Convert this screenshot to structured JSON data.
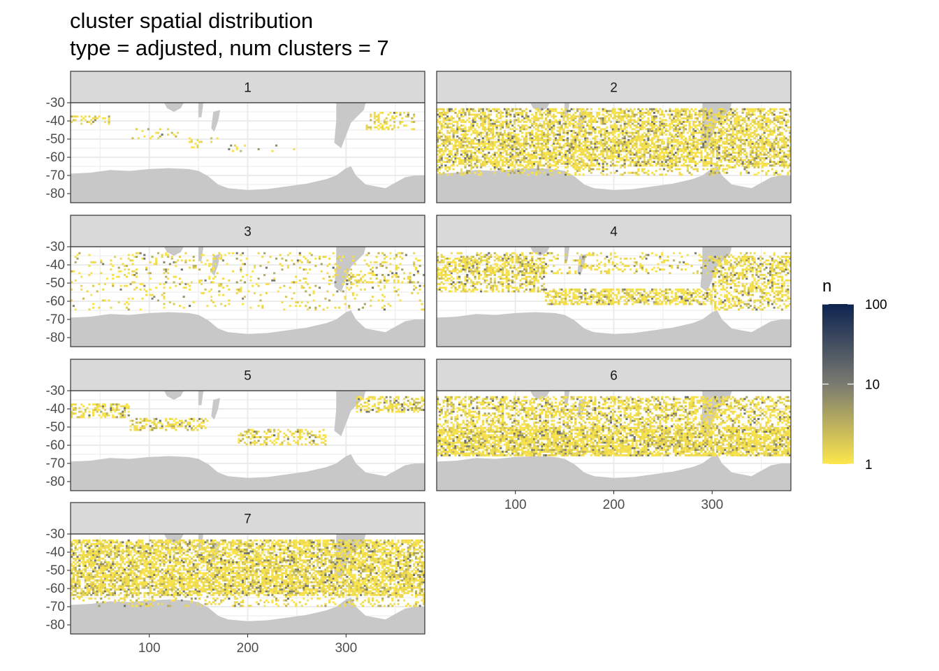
{
  "title_line1": "cluster spatial distribution",
  "title_line2": "type = adjusted, num clusters = 7",
  "chart_data": {
    "type": "heatmap",
    "title": "cluster spatial distribution",
    "subtitle": "type = adjusted, num clusters = 7",
    "facet_labels": [
      "1",
      "2",
      "3",
      "4",
      "5",
      "6",
      "7"
    ],
    "xlim": [
      20,
      380
    ],
    "ylim": [
      -85,
      -30
    ],
    "x_ticks": [
      100,
      200,
      300
    ],
    "y_ticks": [
      -30,
      -40,
      -50,
      -60,
      -70,
      -80
    ],
    "y_tick_labels": [
      "-30",
      "-40",
      "-50",
      "-60",
      "-70",
      "-80"
    ],
    "x_tick_labels": [
      "100",
      "200",
      "300"
    ],
    "fill": {
      "name": "n",
      "scale": "log10",
      "range": [
        1,
        100
      ],
      "breaks": [
        1,
        10,
        100
      ],
      "break_labels": [
        "1",
        "10",
        "100"
      ],
      "low_color": "#fde74c",
      "mid_color": "#7a7a70",
      "high_color": "#0d2451"
    },
    "land_color": "#c8c8c8",
    "panel_border": "#333333",
    "strip_fill": "#d9d9d9",
    "grid": true,
    "legend_position": "right",
    "facets": [
      {
        "label": "1",
        "bands": [
          {
            "x": [
              20,
              60
            ],
            "y": [
              -42,
              -37
            ],
            "density": 0.35
          },
          {
            "x": [
              80,
              130
            ],
            "y": [
              -50,
              -44
            ],
            "density": 0.15
          },
          {
            "x": [
              140,
              170
            ],
            "y": [
              -55,
              -49
            ],
            "density": 0.12
          },
          {
            "x": [
              180,
              250
            ],
            "y": [
              -57,
              -53
            ],
            "density": 0.08
          },
          {
            "x": [
              320,
              370
            ],
            "y": [
              -45,
              -35
            ],
            "density": 0.3
          }
        ]
      },
      {
        "label": "2",
        "bands": [
          {
            "x": [
              20,
              380
            ],
            "y": [
              -50,
              -33
            ],
            "density": 0.55
          },
          {
            "x": [
              20,
              380
            ],
            "y": [
              -65,
              -50
            ],
            "density": 0.65
          },
          {
            "x": [
              20,
              380
            ],
            "y": [
              -70,
              -65
            ],
            "density": 0.25
          }
        ]
      },
      {
        "label": "3",
        "bands": [
          {
            "x": [
              20,
              380
            ],
            "y": [
              -55,
              -33
            ],
            "density": 0.12
          },
          {
            "x": [
              300,
              370
            ],
            "y": [
              -50,
              -44
            ],
            "density": 0.3
          },
          {
            "x": [
              20,
              380
            ],
            "y": [
              -65,
              -55
            ],
            "density": 0.06
          }
        ]
      },
      {
        "label": "4",
        "bands": [
          {
            "x": [
              20,
              130
            ],
            "y": [
              -55,
              -35
            ],
            "density": 0.45
          },
          {
            "x": [
              130,
              300
            ],
            "y": [
              -62,
              -53
            ],
            "density": 0.55
          },
          {
            "x": [
              20,
              380
            ],
            "y": [
              -45,
              -33
            ],
            "density": 0.2
          },
          {
            "x": [
              300,
              380
            ],
            "y": [
              -65,
              -35
            ],
            "density": 0.4
          }
        ]
      },
      {
        "label": "5",
        "bands": [
          {
            "x": [
              20,
              80
            ],
            "y": [
              -45,
              -37
            ],
            "density": 0.45
          },
          {
            "x": [
              80,
              160
            ],
            "y": [
              -52,
              -45
            ],
            "density": 0.35
          },
          {
            "x": [
              190,
              280
            ],
            "y": [
              -60,
              -51
            ],
            "density": 0.35
          },
          {
            "x": [
              310,
              380
            ],
            "y": [
              -42,
              -33
            ],
            "density": 0.5
          }
        ]
      },
      {
        "label": "6",
        "bands": [
          {
            "x": [
              20,
              380
            ],
            "y": [
              -50,
              -33
            ],
            "density": 0.45
          },
          {
            "x": [
              20,
              380
            ],
            "y": [
              -66,
              -50
            ],
            "density": 0.75
          }
        ]
      },
      {
        "label": "7",
        "bands": [
          {
            "x": [
              20,
              380
            ],
            "y": [
              -52,
              -33
            ],
            "density": 0.65
          },
          {
            "x": [
              20,
              380
            ],
            "y": [
              -64,
              -52
            ],
            "density": 0.7
          },
          {
            "x": [
              20,
              380
            ],
            "y": [
              -70,
              -64
            ],
            "density": 0.2
          }
        ]
      }
    ]
  }
}
